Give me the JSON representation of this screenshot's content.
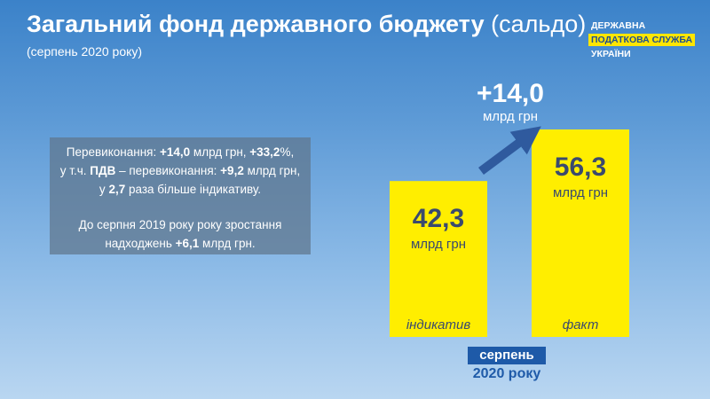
{
  "header": {
    "title_bold": "Загальний фонд державного бюджету",
    "title_light": "(сальдо)",
    "subtitle": "(серпень 2020 року)"
  },
  "logo": {
    "line1": "ДЕРЖАВНА",
    "line2": "ПОДАТКОВА СЛУЖБА",
    "line3": "УКРАЇНИ"
  },
  "info": {
    "l1_a": "Перевиконання: ",
    "l1_b": "+14,0",
    "l1_c": " млрд грн, ",
    "l1_d": "+33,2",
    "l1_e": "%,",
    "l2_a": "у т.ч. ",
    "l2_b": "ПДВ",
    "l2_c": " – перевиконання: ",
    "l2_d": "+9,2",
    "l2_e": " млрд грн,",
    "l3_a": "у ",
    "l3_b": "2,7",
    "l3_c": " раза більше індикативу.",
    "p2_l1": "До серпня 2019 року року зростання",
    "p2_l2_a": "надходжень ",
    "p2_l2_b": "+6,1",
    "p2_l2_c": " млрд грн."
  },
  "period": {
    "month": "серпень",
    "year": "2020 року"
  },
  "chart_data": {
    "type": "bar",
    "categories": [
      "індикатив",
      "факт"
    ],
    "values": [
      42.3,
      56.3
    ],
    "value_labels": [
      "42,3",
      "56,3"
    ],
    "unit": "млрд грн",
    "difference": {
      "value": 14.0,
      "label": "+14,0",
      "unit": "млрд грн"
    },
    "colors": {
      "bar": "#ffee00",
      "value_text": "#3a4a6e",
      "category_text": "#3a4a6e",
      "arrow": "#2f5a9e"
    }
  }
}
